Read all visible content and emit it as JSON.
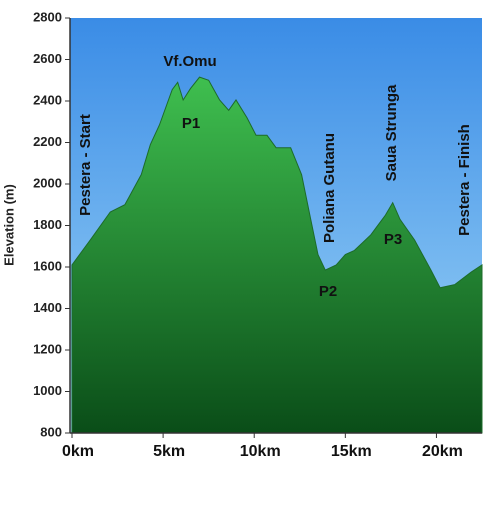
{
  "chart_data": {
    "type": "area",
    "y_label": "Elevation (m)",
    "x": [
      0,
      1.0,
      2.1,
      2.9,
      3.8,
      4.3,
      4.8,
      5.5,
      5.8,
      6.1,
      6.5,
      7.0,
      7.5,
      8.1,
      8.6,
      9.0,
      9.6,
      10.1,
      10.7,
      11.2,
      12.0,
      12.6,
      13.1,
      13.5,
      13.9,
      14.5,
      15.0,
      15.5,
      16.4,
      17.2,
      17.6,
      18.0,
      18.8,
      19.7,
      20.2,
      21.0,
      21.9,
      22.5
    ],
    "values": [
      1610,
      1730,
      1865,
      1900,
      2045,
      2190,
      2285,
      2455,
      2490,
      2405,
      2460,
      2515,
      2500,
      2405,
      2355,
      2405,
      2320,
      2235,
      2235,
      2175,
      2175,
      2045,
      1830,
      1660,
      1585,
      1610,
      1660,
      1680,
      1755,
      1850,
      1910,
      1830,
      1730,
      1585,
      1500,
      1515,
      1575,
      1610
    ],
    "color": "#3fbf4f",
    "xlim": [
      0,
      22.5
    ],
    "ylim": [
      800,
      2800
    ],
    "xticks": [
      {
        "value": 0,
        "label": "0km"
      },
      {
        "value": 5,
        "label": "5km"
      },
      {
        "value": 10,
        "label": "10km"
      },
      {
        "value": 15,
        "label": "15km"
      },
      {
        "value": 20,
        "label": "20km"
      }
    ],
    "yticks": [
      800,
      1000,
      1200,
      1400,
      1600,
      1800,
      2000,
      2200,
      2400,
      2600,
      2800
    ],
    "annotations": [
      "Vf.Omu",
      "P1",
      "Pestera - Start",
      "Poliana Gutanu",
      "P2",
      "Saua Strunga",
      "P3",
      "Pestera - Finish"
    ]
  }
}
